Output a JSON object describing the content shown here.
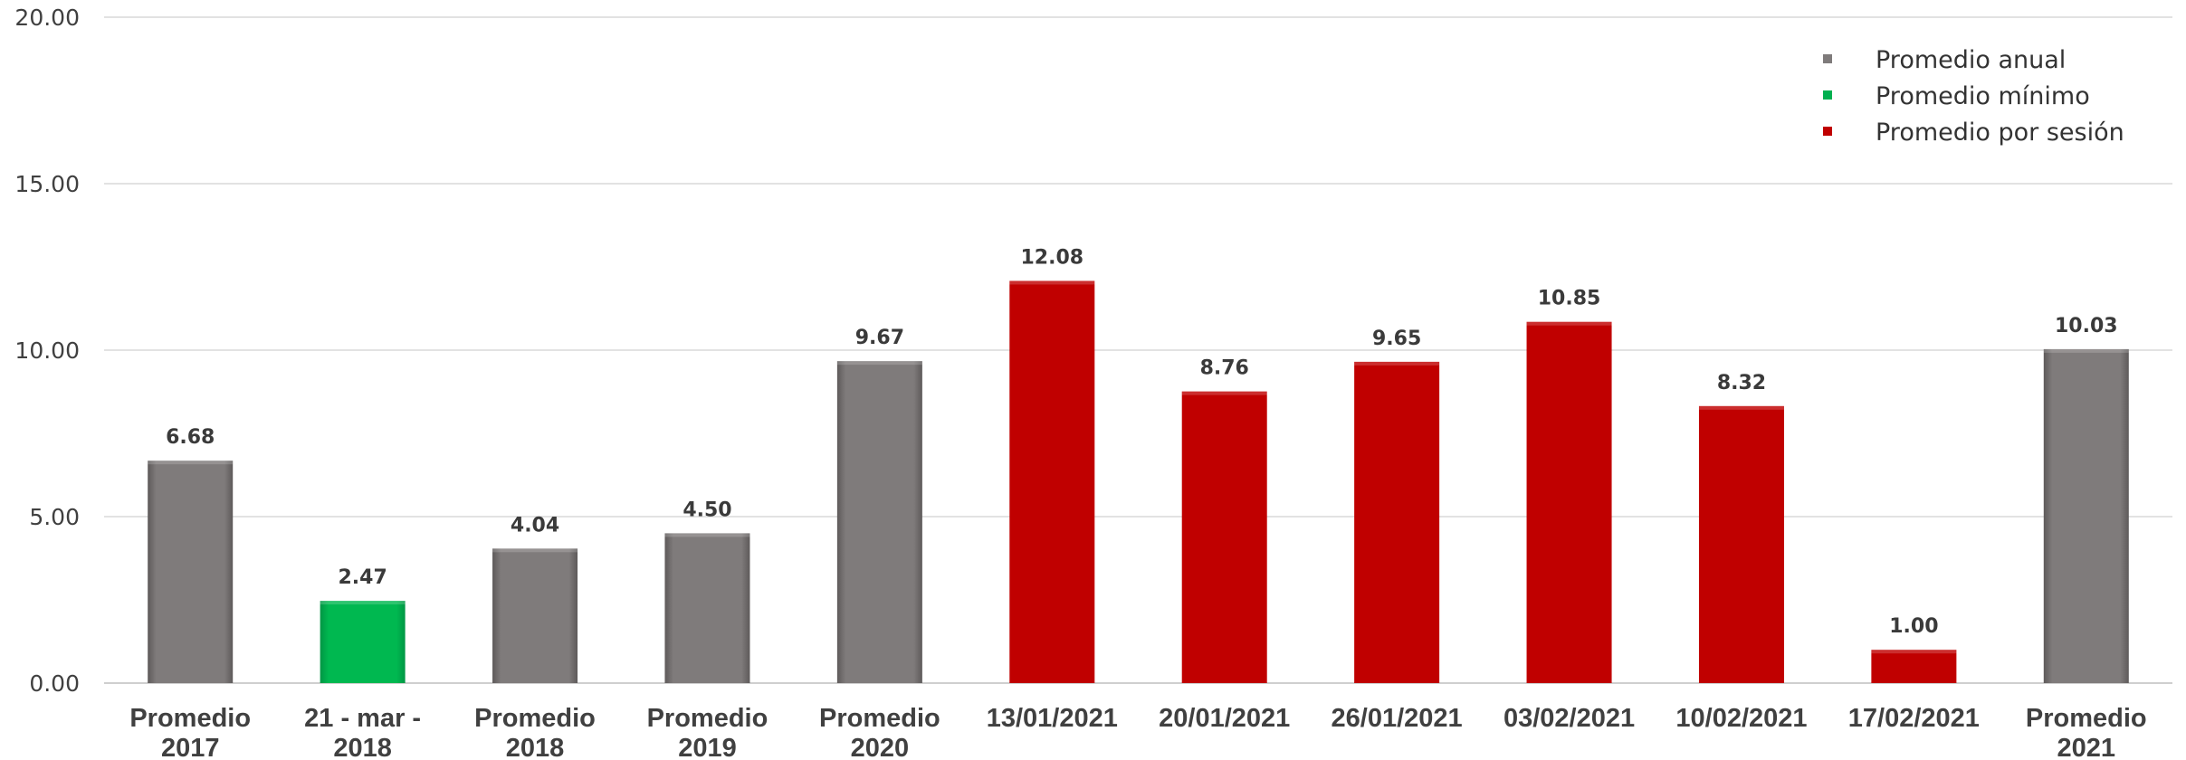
{
  "chart_data": {
    "type": "bar",
    "title": "",
    "xlabel": "",
    "ylabel": "",
    "ylim": [
      0,
      20
    ],
    "yticks": [
      "0.00",
      "5.00",
      "10.00",
      "15.00",
      "20.00"
    ],
    "grid": true,
    "legend_position": "top-right",
    "categories": [
      [
        "Promedio",
        "2017"
      ],
      [
        "21 - mar -",
        "2018"
      ],
      [
        "Promedio",
        "2018"
      ],
      [
        "Promedio",
        "2019"
      ],
      [
        "Promedio",
        "2020"
      ],
      [
        "13/01/2021"
      ],
      [
        "20/01/2021"
      ],
      [
        "26/01/2021"
      ],
      [
        "03/02/2021"
      ],
      [
        "10/02/2021"
      ],
      [
        "17/02/2021"
      ],
      [
        "Promedio",
        "2021"
      ]
    ],
    "values": [
      6.68,
      2.47,
      4.04,
      4.5,
      9.67,
      12.08,
      8.76,
      9.65,
      10.85,
      8.32,
      1.0,
      10.03
    ],
    "value_labels": [
      "6.68",
      "2.47",
      "4.04",
      "4.50",
      "9.67",
      "12.08",
      "8.76",
      "9.65",
      "10.85",
      "8.32",
      "1.00",
      "10.03"
    ],
    "groups": [
      "anual",
      "minimo",
      "anual",
      "anual",
      "anual",
      "sesion",
      "sesion",
      "sesion",
      "sesion",
      "sesion",
      "sesion",
      "anual"
    ],
    "series": [
      {
        "key": "anual",
        "name": "Promedio anual",
        "color": "#7f7b7b"
      },
      {
        "key": "minimo",
        "name": "Promedio mínimo",
        "color": "#00b050"
      },
      {
        "key": "sesion",
        "name": "Promedio por sesión",
        "color": "#c00000"
      }
    ]
  }
}
